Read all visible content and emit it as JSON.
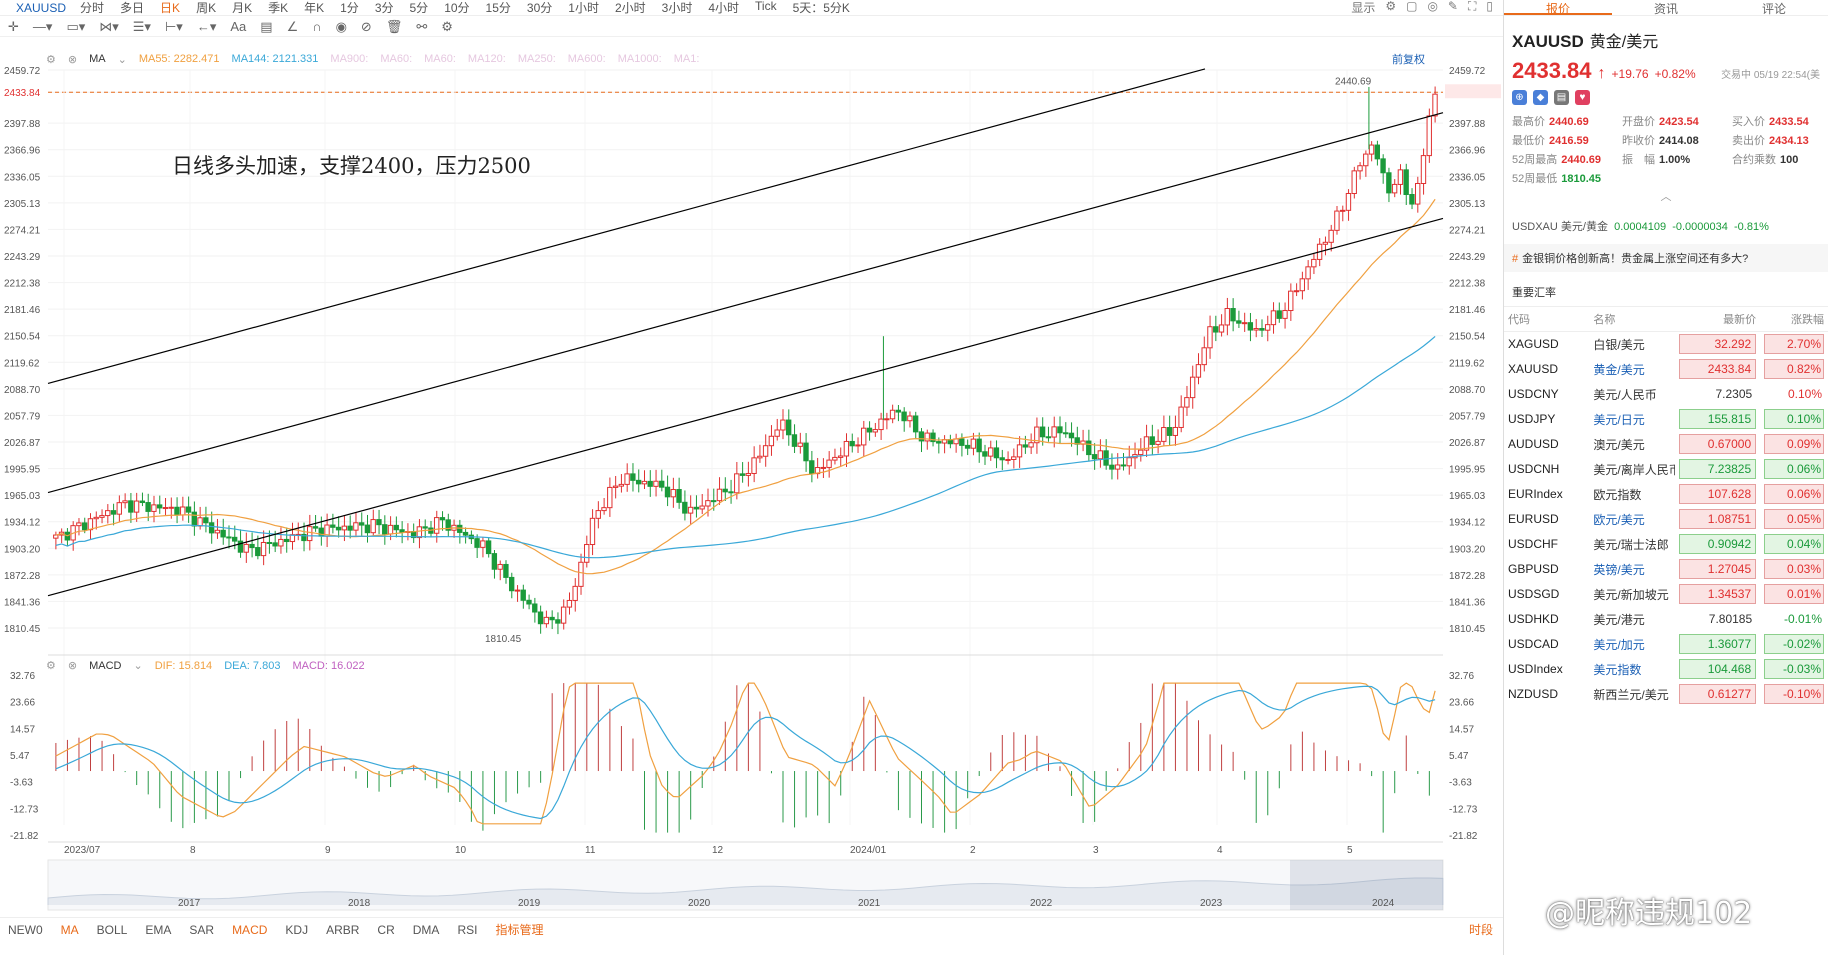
{
  "topbar": {
    "symbol": "XAUUSD",
    "periods": [
      "分时",
      "多日",
      "日K",
      "周K",
      "月K",
      "季K",
      "年K",
      "1分",
      "3分",
      "5分",
      "10分",
      "15分",
      "30分",
      "1小时",
      "2小时",
      "3小时",
      "4小时",
      "Tick",
      "5天：5分K"
    ],
    "active_period": "日K",
    "display_label": "显示"
  },
  "legend": {
    "ma_label": "MA",
    "ma55": "MA55: 2282.471",
    "ma144": "MA144: 2121.331",
    "dim": [
      "MA900:",
      "MA60:",
      "MA60:",
      "MA120:",
      "MA250:",
      "MA600:",
      "MA1000:",
      "MA1:"
    ],
    "fuquan": "前复权"
  },
  "annotation": "日线多头加速，支撑2400，压力2500",
  "price_axis": [
    "2459.72",
    "2433.84",
    "2397.88",
    "2366.96",
    "2336.05",
    "2305.13",
    "2274.21",
    "2243.29",
    "2212.38",
    "2181.46",
    "2150.54",
    "2119.62",
    "2088.70",
    "2057.79",
    "2026.87",
    "1995.95",
    "1965.03",
    "1934.12",
    "1903.20",
    "1872.28",
    "1841.36",
    "1810.45"
  ],
  "high_label": "2440.69",
  "low_label": "1810.45",
  "current_price": "2433.84",
  "macd_legend": {
    "name": "MACD",
    "dif": "DIF: 15.814",
    "dea": "DEA: 7.803",
    "macd": "MACD: 16.022"
  },
  "macd_axis": [
    "32.76",
    "23.66",
    "14.57",
    "5.47",
    "-3.63",
    "-12.73",
    "-21.82"
  ],
  "time_axis": [
    "2023/07",
    "8",
    "9",
    "10",
    "11",
    "12",
    "2024/01",
    "2",
    "3",
    "4",
    "5"
  ],
  "overview_years": [
    "2017",
    "2018",
    "2019",
    "2020",
    "2021",
    "2022",
    "2023",
    "2024"
  ],
  "indicators": [
    "NEW0",
    "MA",
    "BOLL",
    "EMA",
    "SAR",
    "MACD",
    "KDJ",
    "ARBR",
    "CR",
    "DMA",
    "RSI"
  ],
  "indicator_mgr": "指标管理",
  "session_label": "时段",
  "panel": {
    "tabs": [
      "报价",
      "资讯",
      "评论"
    ],
    "symbol": "XAUUSD",
    "name": "黄金/美元",
    "price": "2433.84",
    "arrow": "↑",
    "change": "+19.76",
    "pct": "+0.82%",
    "status": "交易中 05/19 22:54(美",
    "stats": [
      [
        "最高价",
        "2440.69",
        "red"
      ],
      [
        "开盘价",
        "2423.54",
        "red"
      ],
      [
        "买入价",
        "2433.54",
        "red"
      ],
      [
        "最低价",
        "2416.59",
        "red"
      ],
      [
        "昨收价",
        "2414.08",
        ""
      ],
      [
        "卖出价",
        "2434.13",
        "red"
      ],
      [
        "52周最高",
        "2440.69",
        "red"
      ],
      [
        "振　幅",
        "1.00%",
        ""
      ],
      [
        "合约乘数",
        "100",
        ""
      ],
      [
        "52周最低",
        "1810.45",
        "green"
      ]
    ],
    "usdxau": {
      "label": "USDXAU 美元/黄金",
      "price": "0.0004109",
      "chg": "-0.0000034",
      "pct": "-0.81%"
    },
    "news": "金银铜价格创新高！贵金属上涨空间还有多大?",
    "fx_title": "重要汇率",
    "fx_headers": [
      "代码",
      "名称",
      "最新价",
      "涨跌幅"
    ],
    "fx": [
      [
        "XAGUSD",
        "白银/美元",
        "32.292",
        "2.70%",
        "r",
        false
      ],
      [
        "XAUUSD",
        "黄金/美元",
        "2433.84",
        "0.82%",
        "r",
        true
      ],
      [
        "USDCNY",
        "美元/人民币",
        "7.2305",
        "0.10%",
        "n",
        false
      ],
      [
        "USDJPY",
        "美元/日元",
        "155.815",
        "0.10%",
        "g",
        true
      ],
      [
        "AUDUSD",
        "澳元/美元",
        "0.67000",
        "0.09%",
        "r",
        false
      ],
      [
        "USDCNH",
        "美元/离岸人民币",
        "7.23825",
        "0.06%",
        "g",
        false
      ],
      [
        "EURIndex",
        "欧元指数",
        "107.628",
        "0.06%",
        "r",
        false
      ],
      [
        "EURUSD",
        "欧元/美元",
        "1.08751",
        "0.05%",
        "r",
        true
      ],
      [
        "USDCHF",
        "美元/瑞士法郎",
        "0.90942",
        "0.04%",
        "g",
        false
      ],
      [
        "GBPUSD",
        "英镑/美元",
        "1.27045",
        "0.03%",
        "r",
        true
      ],
      [
        "USDSGD",
        "美元/新加坡元",
        "1.34537",
        "0.01%",
        "r",
        false
      ],
      [
        "USDHKD",
        "美元/港元",
        "7.80185",
        "-0.01%",
        "n",
        false
      ],
      [
        "USDCAD",
        "美元/加元",
        "1.36077",
        "-0.02%",
        "g",
        true
      ],
      [
        "USDIndex",
        "美元指数",
        "104.468",
        "-0.03%",
        "g",
        true
      ],
      [
        "NZDUSD",
        "新西兰元/美元",
        "0.61277",
        "-0.10%",
        "r",
        false
      ]
    ]
  },
  "watermark": "@昵称违规102",
  "colors": {
    "up": "#e03030",
    "down": "#1a9a3a",
    "ma55": "#f0a040",
    "ma144": "#3aa8d8",
    "accent": "#e86a1a"
  },
  "chart_data": {
    "type": "candlestick",
    "x_range": [
      "2023/06",
      "2024/05/17"
    ],
    "ylim": [
      1810.45,
      2459.72
    ],
    "high": 2440.69,
    "low": 1810.45,
    "last": 2433.84,
    "ma55_last": 2282.471,
    "ma144_last": 2121.331,
    "macd": {
      "dif": 15.814,
      "dea": 7.803,
      "macd": 16.022,
      "ylim": [
        -21.82,
        32.76
      ]
    }
  }
}
